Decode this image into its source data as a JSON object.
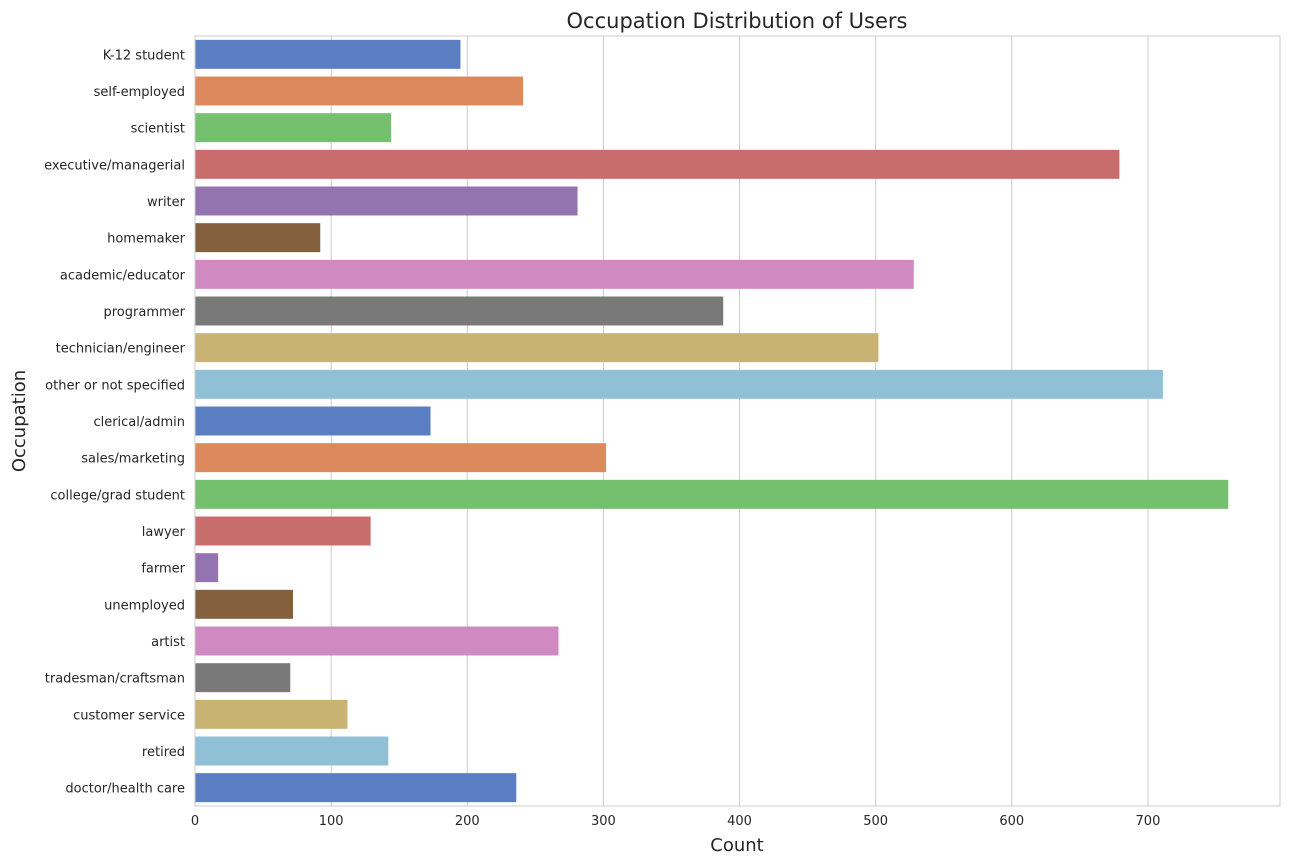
{
  "chart_data": {
    "type": "bar",
    "orientation": "horizontal",
    "title": "Occupation Distribution of Users",
    "xlabel": "Count",
    "ylabel": "Occupation",
    "xlim": [
      0,
      797
    ],
    "xticks": [
      0,
      100,
      200,
      300,
      400,
      500,
      600,
      700
    ],
    "grid": true,
    "categories": [
      "K-12 student",
      "self-employed",
      "scientist",
      "executive/managerial",
      "writer",
      "homemaker",
      "academic/educator",
      "programmer",
      "technician/engineer",
      "other or not specified",
      "clerical/admin",
      "sales/marketing",
      "college/grad student",
      "lawyer",
      "farmer",
      "unemployed",
      "artist",
      "tradesman/craftsman",
      "customer service",
      "retired",
      "doctor/health care"
    ],
    "values": [
      195,
      241,
      144,
      679,
      281,
      92,
      528,
      388,
      502,
      711,
      173,
      302,
      759,
      129,
      17,
      72,
      267,
      70,
      112,
      142,
      236
    ],
    "colors": [
      "#5b7ec2",
      "#dc895e",
      "#74c06e",
      "#c86c6c",
      "#9474b0",
      "#84603f",
      "#d189c1",
      "#797979",
      "#c9b372",
      "#90c0d6"
    ]
  }
}
